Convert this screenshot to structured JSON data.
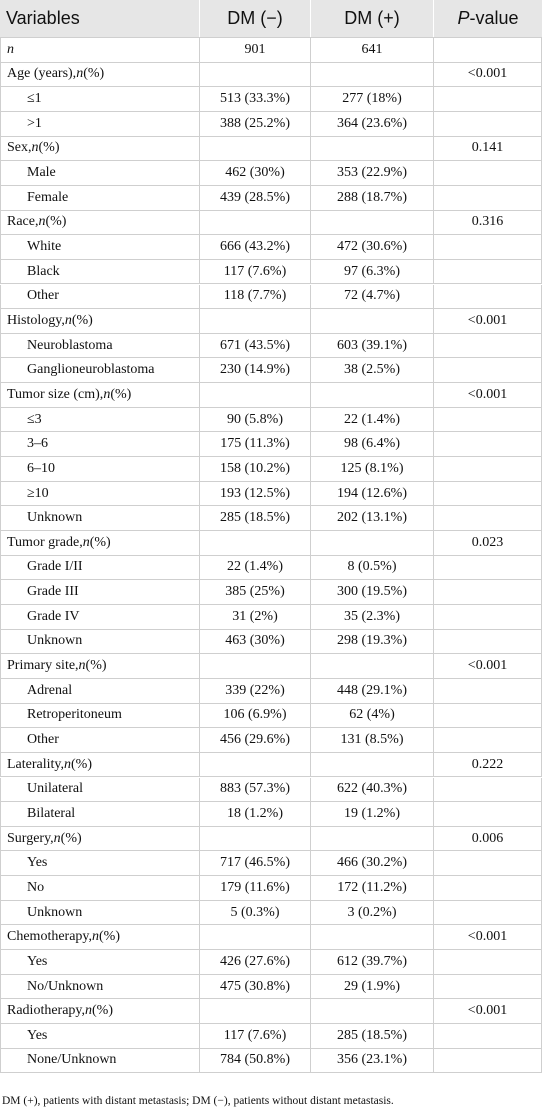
{
  "header": {
    "variables": "Variables",
    "dm_neg": "DM (−)",
    "dm_pos": "DM (+)",
    "p_value": [
      "P",
      "-value"
    ]
  },
  "n_row": {
    "label": "n",
    "dm_neg": "901",
    "dm_pos": "641"
  },
  "groups": [
    {
      "label": [
        "Age (years), ",
        "n",
        " (%)"
      ],
      "p": "<0.001",
      "rows": [
        {
          "label": "≤1",
          "dm_neg": "513 (33.3%)",
          "dm_pos": "277 (18%)"
        },
        {
          "label": ">1",
          "dm_neg": "388 (25.2%)",
          "dm_pos": "364 (23.6%)"
        }
      ]
    },
    {
      "label": [
        "Sex, ",
        "n",
        " (%)"
      ],
      "p": "0.141",
      "rows": [
        {
          "label": "Male",
          "dm_neg": "462 (30%)",
          "dm_pos": "353 (22.9%)"
        },
        {
          "label": "Female",
          "dm_neg": "439 (28.5%)",
          "dm_pos": "288 (18.7%)"
        }
      ]
    },
    {
      "label": [
        "Race, ",
        "n",
        " (%)"
      ],
      "p": "0.316",
      "rows": [
        {
          "label": "White",
          "dm_neg": "666 (43.2%)",
          "dm_pos": "472 (30.6%)"
        },
        {
          "label": "Black",
          "dm_neg": "117 (7.6%)",
          "dm_pos": "97 (6.3%)"
        },
        {
          "label": "Other",
          "dm_neg": "118 (7.7%)",
          "dm_pos": "72 (4.7%)"
        }
      ]
    },
    {
      "label": [
        "Histology, ",
        "n",
        " (%)"
      ],
      "p": "<0.001",
      "rows": [
        {
          "label": "Neuroblastoma",
          "dm_neg": "671 (43.5%)",
          "dm_pos": "603 (39.1%)"
        },
        {
          "label": "Ganglioneuroblastoma",
          "dm_neg": "230 (14.9%)",
          "dm_pos": "38 (2.5%)"
        }
      ]
    },
    {
      "label": [
        "Tumor size (cm), ",
        "n",
        " (%)"
      ],
      "p": "<0.001",
      "rows": [
        {
          "label": "≤3",
          "dm_neg": "90 (5.8%)",
          "dm_pos": "22 (1.4%)"
        },
        {
          "label": "3–6",
          "dm_neg": "175 (11.3%)",
          "dm_pos": "98 (6.4%)"
        },
        {
          "label": "6–10",
          "dm_neg": "158 (10.2%)",
          "dm_pos": "125 (8.1%)"
        },
        {
          "label": "≥10",
          "dm_neg": "193 (12.5%)",
          "dm_pos": "194 (12.6%)"
        },
        {
          "label": "Unknown",
          "dm_neg": "285 (18.5%)",
          "dm_pos": "202 (13.1%)"
        }
      ]
    },
    {
      "label": [
        "Tumor grade, ",
        "n",
        " (%)"
      ],
      "p": "0.023",
      "rows": [
        {
          "label": "Grade I/II",
          "dm_neg": "22 (1.4%)",
          "dm_pos": "8 (0.5%)"
        },
        {
          "label": "Grade III",
          "dm_neg": "385 (25%)",
          "dm_pos": "300 (19.5%)"
        },
        {
          "label": "Grade IV",
          "dm_neg": "31 (2%)",
          "dm_pos": "35 (2.3%)"
        },
        {
          "label": "Unknown",
          "dm_neg": "463 (30%)",
          "dm_pos": "298 (19.3%)"
        }
      ]
    },
    {
      "label": [
        "Primary site, ",
        "n",
        " (%)"
      ],
      "p": "<0.001",
      "rows": [
        {
          "label": "Adrenal",
          "dm_neg": "339 (22%)",
          "dm_pos": "448 (29.1%)"
        },
        {
          "label": "Retroperitoneum",
          "dm_neg": "106 (6.9%)",
          "dm_pos": "62 (4%)"
        },
        {
          "label": "Other",
          "dm_neg": "456 (29.6%)",
          "dm_pos": "131 (8.5%)"
        }
      ]
    },
    {
      "label": [
        "Laterality, ",
        "n",
        " (%)"
      ],
      "p": "0.222",
      "rows": [
        {
          "label": "Unilateral",
          "dm_neg": "883 (57.3%)",
          "dm_pos": "622 (40.3%)"
        },
        {
          "label": "Bilateral",
          "dm_neg": "18 (1.2%)",
          "dm_pos": "19 (1.2%)"
        }
      ]
    },
    {
      "label": [
        "Surgery, ",
        "n",
        " (%)"
      ],
      "p": "0.006",
      "rows": [
        {
          "label": "Yes",
          "dm_neg": "717 (46.5%)",
          "dm_pos": "466 (30.2%)"
        },
        {
          "label": "No",
          "dm_neg": "179 (11.6%)",
          "dm_pos": "172 (11.2%)"
        },
        {
          "label": "Unknown",
          "dm_neg": "5 (0.3%)",
          "dm_pos": "3 (0.2%)"
        }
      ]
    },
    {
      "label": [
        "Chemotherapy, ",
        "n",
        " (%)"
      ],
      "p": "<0.001",
      "rows": [
        {
          "label": "Yes",
          "dm_neg": "426 (27.6%)",
          "dm_pos": "612 (39.7%)"
        },
        {
          "label": "No/Unknown",
          "dm_neg": "475 (30.8%)",
          "dm_pos": "29 (1.9%)"
        }
      ]
    },
    {
      "label": [
        "Radiotherapy, ",
        "n",
        " (%)"
      ],
      "p": "<0.001",
      "rows": [
        {
          "label": "Yes",
          "dm_neg": "117 (7.6%)",
          "dm_pos": "285 (18.5%)"
        },
        {
          "label": "None/Unknown",
          "dm_neg": "784 (50.8%)",
          "dm_pos": "356 (23.1%)"
        }
      ]
    }
  ],
  "footnote": "DM (+), patients with distant metastasis; DM (−), patients without distant metastasis."
}
